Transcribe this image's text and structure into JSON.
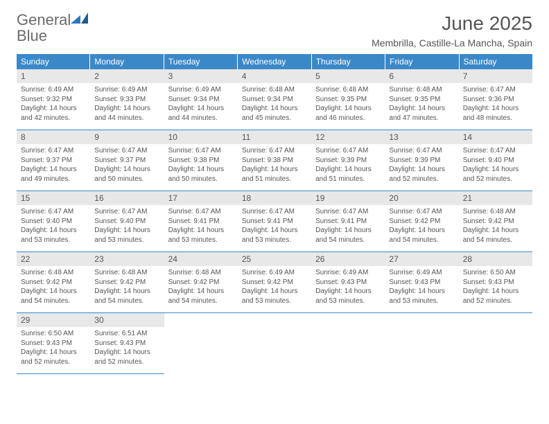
{
  "logo": {
    "word1": "General",
    "word2": "Blue"
  },
  "title": "June 2025",
  "location": "Membrilla, Castille-La Mancha, Spain",
  "colors": {
    "header_bg": "#3b88c9",
    "header_text": "#ffffff",
    "daynum_bg": "#e8e8e8",
    "body_text": "#555555",
    "logo_gray": "#6b6b6b",
    "logo_blue": "#2f77bd",
    "page_bg": "#ffffff"
  },
  "weekdays": [
    "Sunday",
    "Monday",
    "Tuesday",
    "Wednesday",
    "Thursday",
    "Friday",
    "Saturday"
  ],
  "days": [
    {
      "n": "1",
      "sunrise": "6:49 AM",
      "sunset": "9:32 PM",
      "daylight": "14 hours and 42 minutes."
    },
    {
      "n": "2",
      "sunrise": "6:49 AM",
      "sunset": "9:33 PM",
      "daylight": "14 hours and 44 minutes."
    },
    {
      "n": "3",
      "sunrise": "6:49 AM",
      "sunset": "9:34 PM",
      "daylight": "14 hours and 44 minutes."
    },
    {
      "n": "4",
      "sunrise": "6:48 AM",
      "sunset": "9:34 PM",
      "daylight": "14 hours and 45 minutes."
    },
    {
      "n": "5",
      "sunrise": "6:48 AM",
      "sunset": "9:35 PM",
      "daylight": "14 hours and 46 minutes."
    },
    {
      "n": "6",
      "sunrise": "6:48 AM",
      "sunset": "9:35 PM",
      "daylight": "14 hours and 47 minutes."
    },
    {
      "n": "7",
      "sunrise": "6:47 AM",
      "sunset": "9:36 PM",
      "daylight": "14 hours and 48 minutes."
    },
    {
      "n": "8",
      "sunrise": "6:47 AM",
      "sunset": "9:37 PM",
      "daylight": "14 hours and 49 minutes."
    },
    {
      "n": "9",
      "sunrise": "6:47 AM",
      "sunset": "9:37 PM",
      "daylight": "14 hours and 50 minutes."
    },
    {
      "n": "10",
      "sunrise": "6:47 AM",
      "sunset": "9:38 PM",
      "daylight": "14 hours and 50 minutes."
    },
    {
      "n": "11",
      "sunrise": "6:47 AM",
      "sunset": "9:38 PM",
      "daylight": "14 hours and 51 minutes."
    },
    {
      "n": "12",
      "sunrise": "6:47 AM",
      "sunset": "9:39 PM",
      "daylight": "14 hours and 51 minutes."
    },
    {
      "n": "13",
      "sunrise": "6:47 AM",
      "sunset": "9:39 PM",
      "daylight": "14 hours and 52 minutes."
    },
    {
      "n": "14",
      "sunrise": "6:47 AM",
      "sunset": "9:40 PM",
      "daylight": "14 hours and 52 minutes."
    },
    {
      "n": "15",
      "sunrise": "6:47 AM",
      "sunset": "9:40 PM",
      "daylight": "14 hours and 53 minutes."
    },
    {
      "n": "16",
      "sunrise": "6:47 AM",
      "sunset": "9:40 PM",
      "daylight": "14 hours and 53 minutes."
    },
    {
      "n": "17",
      "sunrise": "6:47 AM",
      "sunset": "9:41 PM",
      "daylight": "14 hours and 53 minutes."
    },
    {
      "n": "18",
      "sunrise": "6:47 AM",
      "sunset": "9:41 PM",
      "daylight": "14 hours and 53 minutes."
    },
    {
      "n": "19",
      "sunrise": "6:47 AM",
      "sunset": "9:41 PM",
      "daylight": "14 hours and 54 minutes."
    },
    {
      "n": "20",
      "sunrise": "6:47 AM",
      "sunset": "9:42 PM",
      "daylight": "14 hours and 54 minutes."
    },
    {
      "n": "21",
      "sunrise": "6:48 AM",
      "sunset": "9:42 PM",
      "daylight": "14 hours and 54 minutes."
    },
    {
      "n": "22",
      "sunrise": "6:48 AM",
      "sunset": "9:42 PM",
      "daylight": "14 hours and 54 minutes."
    },
    {
      "n": "23",
      "sunrise": "6:48 AM",
      "sunset": "9:42 PM",
      "daylight": "14 hours and 54 minutes."
    },
    {
      "n": "24",
      "sunrise": "6:48 AM",
      "sunset": "9:42 PM",
      "daylight": "14 hours and 54 minutes."
    },
    {
      "n": "25",
      "sunrise": "6:49 AM",
      "sunset": "9:42 PM",
      "daylight": "14 hours and 53 minutes."
    },
    {
      "n": "26",
      "sunrise": "6:49 AM",
      "sunset": "9:43 PM",
      "daylight": "14 hours and 53 minutes."
    },
    {
      "n": "27",
      "sunrise": "6:49 AM",
      "sunset": "9:43 PM",
      "daylight": "14 hours and 53 minutes."
    },
    {
      "n": "28",
      "sunrise": "6:50 AM",
      "sunset": "9:43 PM",
      "daylight": "14 hours and 52 minutes."
    },
    {
      "n": "29",
      "sunrise": "6:50 AM",
      "sunset": "9:43 PM",
      "daylight": "14 hours and 52 minutes."
    },
    {
      "n": "30",
      "sunrise": "6:51 AM",
      "sunset": "9:43 PM",
      "daylight": "14 hours and 52 minutes."
    }
  ],
  "labels": {
    "sunrise_prefix": "Sunrise: ",
    "sunset_prefix": "Sunset: ",
    "daylight_prefix": "Daylight: "
  },
  "layout": {
    "start_offset": 0,
    "total_cells": 35
  }
}
